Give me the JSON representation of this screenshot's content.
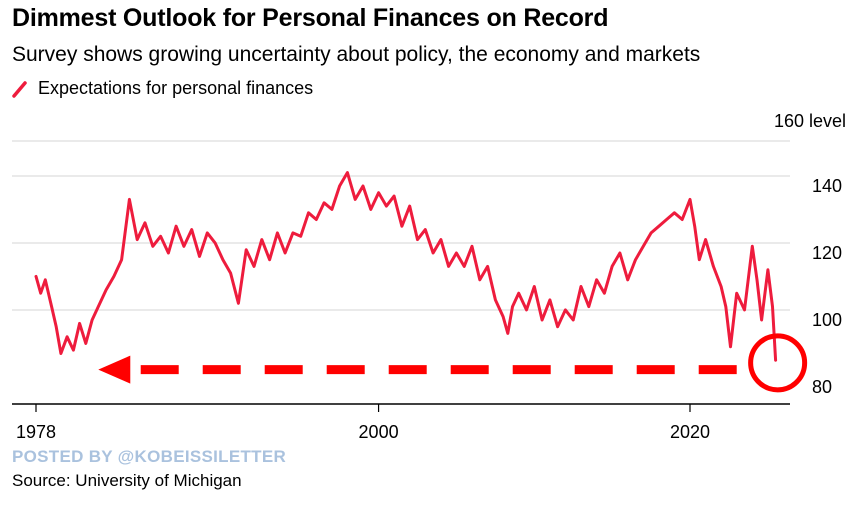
{
  "header": {
    "title": "Dimmest Outlook for Personal Finances on Record",
    "subtitle": "Survey shows growing uncertainty about policy, the economy and markets",
    "legend_label": "Expectations for personal finances",
    "unit_label": "160 level"
  },
  "footer": {
    "watermark": "POSTED BY @KOBEISSILETTER",
    "source": "Source: University of Michigan"
  },
  "colors": {
    "series": "#ee1c3d",
    "annotation": "#ff0000",
    "grid": "#d6d6d6",
    "watermark": "#aac2de"
  },
  "chart_data": {
    "type": "line",
    "title": "Dimmest Outlook for Personal Finances on Record",
    "subtitle": "Survey shows growing uncertainty about policy, the economy and markets",
    "xlabel": "",
    "ylabel": "level",
    "xlim": [
      1978,
      2028
    ],
    "ylim": [
      75,
      160
    ],
    "yticks": [
      80,
      100,
      120,
      140
    ],
    "ytick_labels": [
      "80",
      "100",
      "120",
      "140"
    ],
    "xticks": [
      1978,
      2000,
      2020
    ],
    "xtick_labels": [
      "1978",
      "2000",
      "2020"
    ],
    "grid": true,
    "legend_position": "top-left",
    "series": [
      {
        "name": "Expectations for personal finances",
        "x": [
          1978.0,
          1978.3,
          1978.6,
          1979.0,
          1979.3,
          1979.6,
          1980.0,
          1980.4,
          1980.8,
          1981.2,
          1981.6,
          1982.0,
          1982.5,
          1983.0,
          1983.5,
          1984.0,
          1984.5,
          1985.0,
          1985.5,
          1986.0,
          1986.5,
          1987.0,
          1987.5,
          1988.0,
          1988.5,
          1989.0,
          1989.5,
          1990.0,
          1990.5,
          1991.0,
          1991.5,
          1992.0,
          1992.5,
          1993.0,
          1993.5,
          1994.0,
          1994.5,
          1995.0,
          1995.5,
          1996.0,
          1996.5,
          1997.0,
          1997.5,
          1998.0,
          1998.5,
          1999.0,
          1999.5,
          2000.0,
          2000.5,
          2001.0,
          2001.5,
          2002.0,
          2002.5,
          2003.0,
          2003.5,
          2004.0,
          2004.5,
          2005.0,
          2005.5,
          2006.0,
          2006.5,
          2007.0,
          2007.5,
          2008.0,
          2008.3,
          2008.6,
          2009.0,
          2009.5,
          2010.0,
          2010.5,
          2011.0,
          2011.5,
          2012.0,
          2012.5,
          2013.0,
          2013.5,
          2014.0,
          2014.5,
          2015.0,
          2015.5,
          2016.0,
          2016.5,
          2017.0,
          2017.5,
          2018.0,
          2018.5,
          2019.0,
          2019.5,
          2020.0,
          2020.3,
          2020.6,
          2021.0,
          2021.5,
          2022.0,
          2022.3,
          2022.6,
          2023.0,
          2023.5,
          2024.0,
          2024.3,
          2024.6,
          2025.0,
          2025.3,
          2025.5
        ],
        "values": [
          113,
          108,
          112,
          104,
          98,
          90,
          95,
          91,
          99,
          93,
          100,
          104,
          109,
          113,
          118,
          136,
          124,
          129,
          122,
          125,
          120,
          128,
          122,
          127,
          119,
          126,
          123,
          118,
          114,
          105,
          121,
          116,
          124,
          118,
          126,
          120,
          126,
          125,
          132,
          130,
          135,
          133,
          140,
          144,
          136,
          140,
          133,
          138,
          134,
          137,
          128,
          134,
          124,
          127,
          120,
          124,
          116,
          120,
          116,
          122,
          112,
          116,
          106,
          101,
          96,
          104,
          108,
          103,
          110,
          100,
          106,
          98,
          103,
          100,
          110,
          104,
          112,
          108,
          116,
          120,
          112,
          118,
          122,
          126,
          128,
          130,
          132,
          130,
          136,
          128,
          118,
          124,
          116,
          110,
          104,
          92,
          108,
          103,
          122,
          112,
          100,
          115,
          104,
          88
        ]
      }
    ],
    "annotation": {
      "arrow_from_x": 2023.0,
      "arrow_to_x": 1982.0,
      "arrow_y": 84,
      "circle_x": 2025.5,
      "circle_y": 89
    }
  }
}
